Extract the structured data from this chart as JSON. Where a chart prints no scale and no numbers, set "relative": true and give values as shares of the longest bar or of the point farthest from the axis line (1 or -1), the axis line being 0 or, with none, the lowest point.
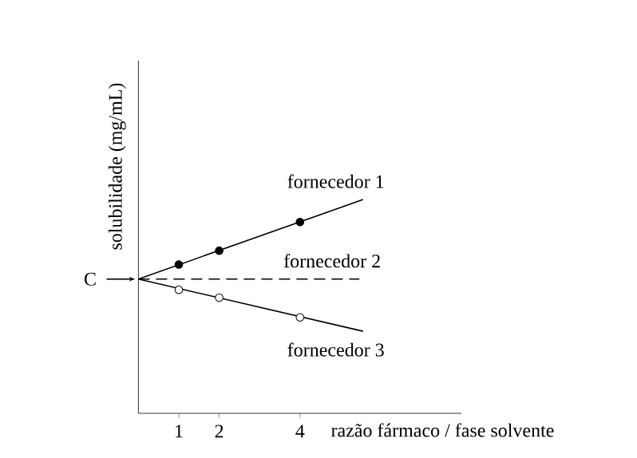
{
  "chart_data": {
    "type": "line",
    "relative": true,
    "xlabel": "razão fármaco / fase solvente",
    "ylabel": "solubilidade (mg/mL)",
    "xlim": [
      0,
      8
    ],
    "xticks": [
      1,
      2,
      4
    ],
    "annotations": [
      "C"
    ],
    "series": [
      {
        "name": "fornecedor 1",
        "color": "#000000",
        "x": [
          0,
          5.56
        ],
        "values": [
          0.628,
          1
        ],
        "marker": "none"
      },
      {
        "name": "fornecedor 2",
        "color": "#000000",
        "x": [
          0,
          5.47
        ],
        "values": [
          0.628,
          0.628
        ],
        "marker": "none",
        "line_style": "dashed"
      },
      {
        "name": "fornecedor 3",
        "color": "#000000",
        "x": [
          0,
          5.56
        ],
        "values": [
          0.628,
          0.384
        ],
        "marker": "none"
      },
      {
        "type": "scatter",
        "color": "#000000",
        "x": [
          1,
          2,
          4
        ],
        "values": [
          0.696,
          0.761,
          0.895
        ],
        "marker": "circle"
      },
      {
        "type": "scatter",
        "color": "#ffffff",
        "x": [
          1,
          2,
          4
        ],
        "values": [
          0.578,
          0.541,
          0.449
        ],
        "marker": "circle"
      }
    ]
  }
}
